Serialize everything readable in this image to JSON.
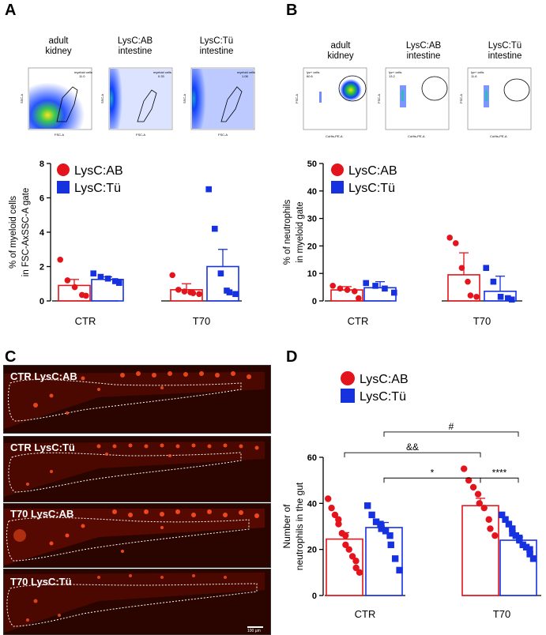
{
  "panels": {
    "A": {
      "label": "A",
      "flow": [
        {
          "title_l1": "adult",
          "title_l2": "kidney",
          "gate_label": "myeloid cells",
          "gate_value": "11.0",
          "xaxis": "FSC-A",
          "yaxis": "SSC-A"
        },
        {
          "title_l1": "LysC:AB",
          "title_l2": "intestine",
          "gate_label": "myeloid cells",
          "gate_value": "0.33",
          "xaxis": "FSC-A",
          "yaxis": "SSC-A"
        },
        {
          "title_l1": "LysC:Tü",
          "title_l2": "intestine",
          "gate_label": "myeloid cells",
          "gate_value": "1.08",
          "xaxis": "FSC-A",
          "yaxis": "SSC-A"
        }
      ]
    },
    "B": {
      "label": "B",
      "flow": [
        {
          "title_l1": "adult",
          "title_l2": "kidney",
          "gate_label": "lyz+ cells",
          "gate_value": "60.6",
          "xaxis": "CoHis-PE-A",
          "yaxis": "FSC-A"
        },
        {
          "title_l1": "LysC:AB",
          "title_l2": "intestine",
          "gate_label": "lyz+ cells",
          "gate_value": "13.2",
          "xaxis": "CoHis-PE-A",
          "yaxis": "FSC-A"
        },
        {
          "title_l1": "LysC:Tü",
          "title_l2": "intestine",
          "gate_label": "lyz+ cells",
          "gate_value": "11.6",
          "xaxis": "CoHis-PE-A",
          "yaxis": "FSC-A"
        }
      ]
    },
    "C": {
      "label": "C",
      "images": [
        "CTR LysC:AB",
        "CTR LysC:Tü",
        "T70 LysC:AB",
        "T70 LysC:Tü"
      ],
      "scale_bar": "100 µm"
    },
    "D": {
      "label": "D"
    }
  },
  "colors": {
    "ab": "#e3141b",
    "tu": "#1632e0"
  },
  "chart_data": [
    {
      "id": "A",
      "type": "bar",
      "categories": [
        "CTR",
        "T70"
      ],
      "ylabel_l1": "% of myeloid cells",
      "ylabel_l2": "in FSC-AxSSC-A gate",
      "ylim": [
        0,
        8
      ],
      "yticks": [
        "0",
        "2",
        "4",
        "6",
        "8"
      ],
      "legend": [
        "LysC:AB",
        "LysC:Tü"
      ],
      "series": [
        {
          "name": "LysC:AB",
          "means": [
            0.9,
            0.65
          ],
          "sem": [
            0.35,
            0.35
          ],
          "points": [
            [
              2.4,
              1.2,
              0.8,
              0.35,
              0.3
            ],
            [
              1.5,
              0.65,
              0.55,
              0.5,
              0.45,
              0.4
            ]
          ]
        },
        {
          "name": "LysC:Tü",
          "means": [
            1.25,
            2.0
          ],
          "sem": [
            0.15,
            1.0
          ],
          "points": [
            [
              1.6,
              1.4,
              1.3,
              1.15,
              1.05
            ],
            [
              6.5,
              4.2,
              1.6,
              0.6,
              0.5,
              0.4
            ]
          ]
        }
      ]
    },
    {
      "id": "B",
      "type": "bar",
      "categories": [
        "CTR",
        "T70"
      ],
      "ylabel_l1": "%  of neutrophils",
      "ylabel_l2": "in myeloid gate",
      "ylim": [
        0,
        50
      ],
      "yticks": [
        "0",
        "10",
        "20",
        "30",
        "40",
        "50"
      ],
      "legend": [
        "LysC:AB",
        "LysC:Tü"
      ],
      "series": [
        {
          "name": "LysC:AB",
          "means": [
            4.0,
            9.5
          ],
          "sem": [
            1.2,
            8.0
          ],
          "points": [
            [
              5.5,
              4.5,
              4.0,
              3.5,
              1.0
            ],
            [
              23.0,
              21.0,
              12.0,
              7.0,
              2.0,
              1.5
            ]
          ]
        },
        {
          "name": "LysC:Tü",
          "means": [
            4.8,
            3.5
          ],
          "sem": [
            2.2,
            5.5
          ],
          "points": [
            [
              6.5,
              5.5,
              4.5,
              3.0
            ],
            [
              12.0,
              7.0,
              1.5,
              1.0,
              0.5
            ]
          ]
        }
      ]
    },
    {
      "id": "D",
      "type": "bar",
      "categories": [
        "CTR",
        "T70"
      ],
      "ylabel_l1": "Number of",
      "ylabel_l2": "neutrophils in the gut",
      "ylim": [
        0,
        60
      ],
      "yticks": [
        "0",
        "20",
        "40",
        "60"
      ],
      "legend": [
        "LysC:AB",
        "LysC:Tü"
      ],
      "annotations": [
        "&&",
        "*",
        "#",
        "****"
      ],
      "series": [
        {
          "name": "LysC:AB",
          "means": [
            24.5,
            39.0
          ],
          "sem": [
            2.8,
            3.2
          ],
          "points": [
            [
              42,
              38,
              35,
              33,
              31,
              27,
              26,
              22,
              20,
              17,
              15,
              12,
              10
            ],
            [
              55,
              50,
              47,
              44,
              40,
              38,
              33,
              29,
              26
            ]
          ]
        },
        {
          "name": "LysC:Tü",
          "means": [
            29.5,
            24.0
          ],
          "sem": [
            2.2,
            1.4
          ],
          "points": [
            [
              39,
              35,
              32,
              31,
              29,
              28,
              26,
              22,
              16,
              11
            ],
            [
              35,
              33,
              31,
              29,
              27,
              26,
              25,
              24,
              22,
              21,
              20,
              18,
              16
            ]
          ]
        }
      ]
    }
  ]
}
